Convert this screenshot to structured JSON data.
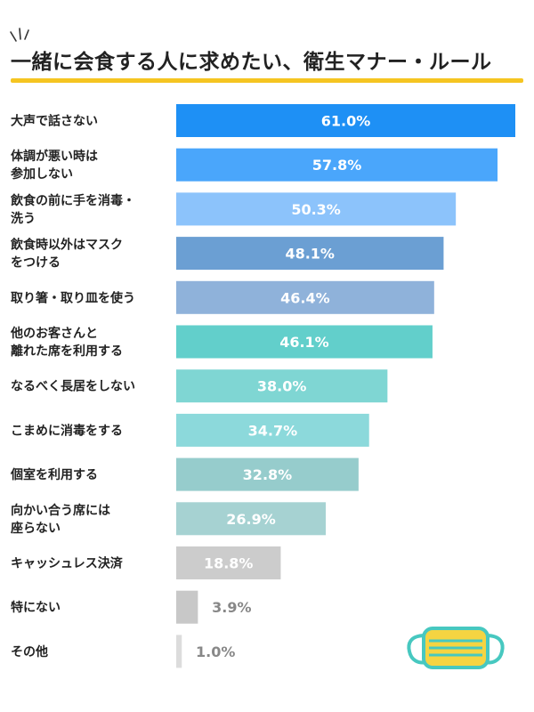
{
  "title": "一緒に会食する人に求めたい、衛生マナー・ルール",
  "colors": {
    "title_underline": "#f5c521",
    "mask_outline": "#47c8c0",
    "mask_fill": "#f5d442"
  },
  "icons": [
    "sparkle-lines-icon",
    "face-mask-icon"
  ],
  "chart_data": {
    "type": "bar",
    "orientation": "horizontal",
    "title": "一緒に会食する人に求めたい、衛生マナー・ルール",
    "xlabel": "",
    "ylabel": "",
    "xlim": [
      0,
      61
    ],
    "grid": false,
    "legend": "none",
    "value_suffix": "%",
    "categories": [
      [
        "大声で話さない"
      ],
      [
        "体調が悪い時は",
        "参加しない"
      ],
      [
        "飲食の前に手を消毒・",
        "洗う"
      ],
      [
        "飲食時以外はマスク",
        "をつける"
      ],
      [
        "取り箸・取り皿を使う"
      ],
      [
        "他のお客さんと",
        "離れた席を利用する"
      ],
      [
        "なるべく長居をしない"
      ],
      [
        "こまめに消毒をする"
      ],
      [
        "個室を利用する"
      ],
      [
        "向かい合う席には",
        "座らない"
      ],
      [
        "キャッシュレス決済"
      ],
      [
        "特にない"
      ],
      [
        "その他"
      ]
    ],
    "values": [
      61.0,
      57.8,
      50.3,
      48.1,
      46.4,
      46.1,
      38.0,
      34.7,
      32.8,
      26.9,
      18.8,
      3.9,
      1.0
    ],
    "value_labels": [
      "61.0%",
      "57.8%",
      "50.3%",
      "48.1%",
      "46.4%",
      "46.1%",
      "38.0%",
      "34.7%",
      "32.8%",
      "26.9%",
      "18.8%",
      "3.9%",
      "1.0%"
    ],
    "bar_colors": [
      "#1e90f5",
      "#4aa6fb",
      "#8cc3fb",
      "#6b9fd3",
      "#8fb2da",
      "#62cfcb",
      "#7fd6d3",
      "#8cd9db",
      "#96cccc",
      "#a6d2d2",
      "#cccccc",
      "#c8c8c8",
      "#dcdcdc"
    ]
  }
}
